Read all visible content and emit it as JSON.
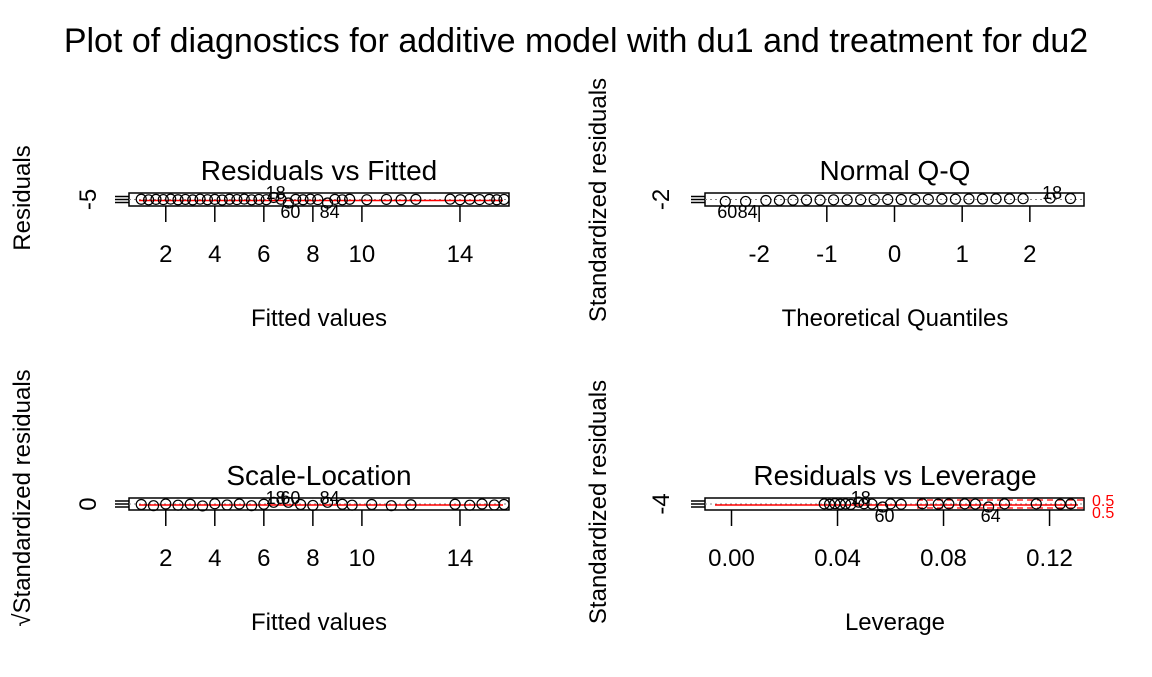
{
  "figure": {
    "title": "Plot of diagnostics for additive model with du1 and treatment for du2"
  },
  "colors": {
    "points": "#000000",
    "smooth": "#ff0000",
    "cook": "#ff0000",
    "axis": "#000000"
  },
  "chart_data": [
    {
      "type": "scatter",
      "title": "Residuals vs Fitted",
      "xlabel": "Fitted values",
      "ylabel": "Residuals",
      "xticks": [
        2,
        4,
        6,
        8,
        10,
        14
      ],
      "yticks": [
        -5
      ],
      "xlim": [
        0.5,
        16
      ],
      "ylim": [
        -8,
        8
      ],
      "grid": false,
      "smoother": "red line near 0",
      "reference_line": "dotted horizontal at 0",
      "labeled_points": [
        {
          "label": "18",
          "x": 6.4,
          "y": 2.5
        },
        {
          "label": "60",
          "x": 7.0,
          "y": -6.5
        },
        {
          "label": "84",
          "x": 8.6,
          "y": -6.5
        }
      ],
      "points": [
        {
          "x": 1.0,
          "y": 0.3
        },
        {
          "x": 1.3,
          "y": -0.4
        },
        {
          "x": 1.6,
          "y": 0.2
        },
        {
          "x": 1.9,
          "y": -0.1
        },
        {
          "x": 2.2,
          "y": 0.5
        },
        {
          "x": 2.5,
          "y": -0.3
        },
        {
          "x": 2.8,
          "y": 0.1
        },
        {
          "x": 3.1,
          "y": -0.5
        },
        {
          "x": 3.4,
          "y": 0.4
        },
        {
          "x": 3.7,
          "y": -0.2
        },
        {
          "x": 4.0,
          "y": 0.2
        },
        {
          "x": 4.3,
          "y": -0.6
        },
        {
          "x": 4.6,
          "y": 0.3
        },
        {
          "x": 4.9,
          "y": -0.1
        },
        {
          "x": 5.2,
          "y": 0.5
        },
        {
          "x": 5.5,
          "y": -0.4
        },
        {
          "x": 5.8,
          "y": 0.1
        },
        {
          "x": 6.1,
          "y": -0.2
        },
        {
          "x": 6.4,
          "y": 2.5
        },
        {
          "x": 6.7,
          "y": 0.3
        },
        {
          "x": 7.0,
          "y": -6.5
        },
        {
          "x": 7.3,
          "y": 0.2
        },
        {
          "x": 7.6,
          "y": -0.3
        },
        {
          "x": 7.9,
          "y": 0.4
        },
        {
          "x": 8.2,
          "y": -0.1
        },
        {
          "x": 8.6,
          "y": -6.5
        },
        {
          "x": 8.9,
          "y": 0.2
        },
        {
          "x": 9.2,
          "y": -0.4
        },
        {
          "x": 9.5,
          "y": 0.3
        },
        {
          "x": 10.2,
          "y": -0.2
        },
        {
          "x": 11.0,
          "y": 0.1
        },
        {
          "x": 11.6,
          "y": -0.3
        },
        {
          "x": 12.2,
          "y": 0.2
        },
        {
          "x": 13.6,
          "y": 0.4
        },
        {
          "x": 14.0,
          "y": -0.2
        },
        {
          "x": 14.4,
          "y": 0.3
        },
        {
          "x": 14.8,
          "y": -0.1
        },
        {
          "x": 15.2,
          "y": 0.2
        },
        {
          "x": 15.5,
          "y": -0.3
        },
        {
          "x": 15.8,
          "y": 0.1
        }
      ]
    },
    {
      "type": "scatter",
      "title": "Normal Q-Q",
      "xlabel": "Theoretical Quantiles",
      "ylabel": "Standardized residuals",
      "xticks": [
        -2,
        -1,
        0,
        1,
        2
      ],
      "yticks": [
        -2
      ],
      "xlim": [
        -2.8,
        2.8
      ],
      "ylim": [
        -4,
        4
      ],
      "grid": false,
      "reference_line": "dotted diagonal",
      "labeled_points": [
        {
          "label": "60",
          "x": -2.5,
          "y": -1.2
        },
        {
          "label": "84",
          "x": -2.2,
          "y": -1.2
        },
        {
          "label": "18",
          "x": 2.3,
          "y": 0.9
        }
      ],
      "points": [
        {
          "x": -2.5,
          "y": -1.2
        },
        {
          "x": -2.2,
          "y": -1.2
        },
        {
          "x": -1.9,
          "y": -0.6
        },
        {
          "x": -1.7,
          "y": -0.5
        },
        {
          "x": -1.5,
          "y": -0.4
        },
        {
          "x": -1.3,
          "y": -0.3
        },
        {
          "x": -1.1,
          "y": -0.3
        },
        {
          "x": -0.9,
          "y": -0.2
        },
        {
          "x": -0.7,
          "y": -0.2
        },
        {
          "x": -0.5,
          "y": -0.1
        },
        {
          "x": -0.3,
          "y": -0.1
        },
        {
          "x": -0.1,
          "y": 0.0
        },
        {
          "x": 0.1,
          "y": 0.0
        },
        {
          "x": 0.3,
          "y": 0.1
        },
        {
          "x": 0.5,
          "y": 0.1
        },
        {
          "x": 0.7,
          "y": 0.2
        },
        {
          "x": 0.9,
          "y": 0.2
        },
        {
          "x": 1.1,
          "y": 0.3
        },
        {
          "x": 1.3,
          "y": 0.3
        },
        {
          "x": 1.5,
          "y": 0.4
        },
        {
          "x": 1.7,
          "y": 0.4
        },
        {
          "x": 1.9,
          "y": 0.5
        },
        {
          "x": 2.3,
          "y": 0.9
        },
        {
          "x": 2.6,
          "y": 0.6
        }
      ]
    },
    {
      "type": "scatter",
      "title": "Scale-Location",
      "xlabel": "Fitted values",
      "ylabel": "√Standardized residuals",
      "xticks": [
        2,
        4,
        6,
        8,
        10,
        14
      ],
      "yticks": [
        0.0
      ],
      "xlim": [
        0.5,
        16
      ],
      "ylim": [
        -0.2,
        0.3
      ],
      "grid": false,
      "smoother": "red line",
      "labeled_points": [
        {
          "label": "18",
          "x": 6.4,
          "y": 0.12
        },
        {
          "label": "60",
          "x": 7.0,
          "y": 0.12
        },
        {
          "label": "84",
          "x": 8.6,
          "y": 0.12
        }
      ],
      "points": [
        {
          "x": 1.0,
          "y": 0.03
        },
        {
          "x": 1.5,
          "y": -0.02
        },
        {
          "x": 2.0,
          "y": 0.05
        },
        {
          "x": 2.5,
          "y": 0.0
        },
        {
          "x": 3.0,
          "y": 0.04
        },
        {
          "x": 3.5,
          "y": -0.03
        },
        {
          "x": 4.0,
          "y": 0.06
        },
        {
          "x": 4.5,
          "y": 0.01
        },
        {
          "x": 5.0,
          "y": 0.05
        },
        {
          "x": 5.5,
          "y": -0.02
        },
        {
          "x": 6.0,
          "y": 0.04
        },
        {
          "x": 6.4,
          "y": 0.12
        },
        {
          "x": 7.0,
          "y": 0.12
        },
        {
          "x": 7.5,
          "y": 0.03
        },
        {
          "x": 8.0,
          "y": -0.01
        },
        {
          "x": 8.6,
          "y": 0.12
        },
        {
          "x": 9.2,
          "y": 0.04
        },
        {
          "x": 9.6,
          "y": 0.0
        },
        {
          "x": 10.4,
          "y": 0.03
        },
        {
          "x": 11.2,
          "y": -0.02
        },
        {
          "x": 12.0,
          "y": 0.02
        },
        {
          "x": 13.8,
          "y": 0.04
        },
        {
          "x": 14.4,
          "y": 0.0
        },
        {
          "x": 14.9,
          "y": 0.05
        },
        {
          "x": 15.4,
          "y": 0.01
        },
        {
          "x": 15.8,
          "y": 0.03
        }
      ]
    },
    {
      "type": "scatter",
      "title": "Residuals vs Leverage",
      "xlabel": "Leverage",
      "ylabel": "Standardized residuals",
      "xticks": [
        0.0,
        0.04,
        0.08,
        0.12
      ],
      "yticks": [
        -4
      ],
      "xlim": [
        -0.01,
        0.133
      ],
      "ylim": [
        -8,
        8
      ],
      "grid": false,
      "smoother": "red line",
      "cooks_distance_labels": [
        "0.5",
        "0.5"
      ],
      "labeled_points": [
        {
          "label": "18",
          "x": 0.048,
          "y": 2.5
        },
        {
          "label": "60",
          "x": 0.057,
          "y": -6.5
        },
        {
          "label": "64",
          "x": 0.097,
          "y": -6.5
        }
      ],
      "points": [
        {
          "x": 0.035,
          "y": 0.2
        },
        {
          "x": 0.037,
          "y": -0.3
        },
        {
          "x": 0.039,
          "y": 0.4
        },
        {
          "x": 0.041,
          "y": -0.2
        },
        {
          "x": 0.043,
          "y": 0.1
        },
        {
          "x": 0.045,
          "y": -0.5
        },
        {
          "x": 0.048,
          "y": 2.5
        },
        {
          "x": 0.05,
          "y": 0.3
        },
        {
          "x": 0.053,
          "y": -0.1
        },
        {
          "x": 0.057,
          "y": -6.5
        },
        {
          "x": 0.06,
          "y": 0.2
        },
        {
          "x": 0.064,
          "y": -0.3
        },
        {
          "x": 0.072,
          "y": 0.3
        },
        {
          "x": 0.078,
          "y": -0.2
        },
        {
          "x": 0.082,
          "y": 0.1
        },
        {
          "x": 0.088,
          "y": 0.2
        },
        {
          "x": 0.092,
          "y": -0.1
        },
        {
          "x": 0.097,
          "y": -6.5
        },
        {
          "x": 0.103,
          "y": 0.2
        },
        {
          "x": 0.115,
          "y": 0.1
        },
        {
          "x": 0.124,
          "y": -0.2
        },
        {
          "x": 0.128,
          "y": 0.2
        }
      ]
    }
  ]
}
